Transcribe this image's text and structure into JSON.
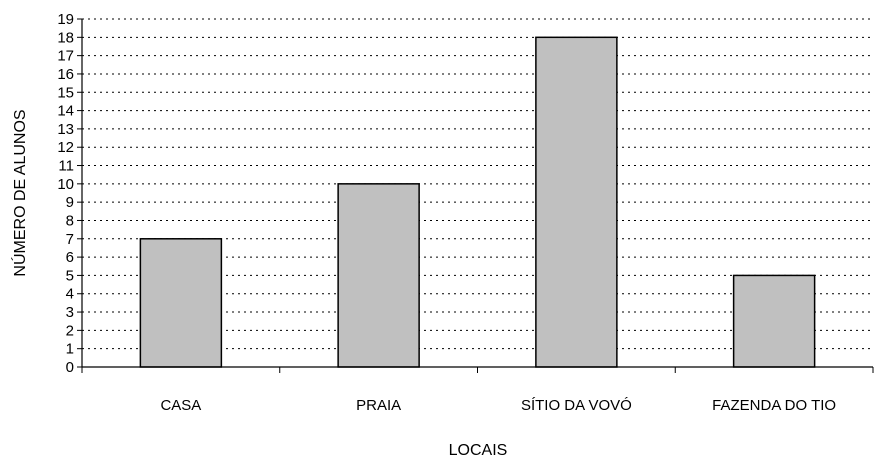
{
  "chart_data": {
    "type": "bar",
    "title": "",
    "xlabel": "LOCAIS",
    "ylabel": "NÚMERO DE ALUNOS",
    "categories": [
      "CASA",
      "PRAIA",
      "SÍTIO DA VOVÓ",
      "FAZENDA DO TIO"
    ],
    "values": [
      7,
      10,
      18,
      5
    ],
    "ylim": [
      0,
      19
    ],
    "yticks": [
      "0",
      "1",
      "2",
      "3",
      "4",
      "5",
      "6",
      "7",
      "8",
      "9",
      "10",
      "11",
      "12",
      "13",
      "14",
      "15",
      "16",
      "17",
      "18",
      "19"
    ],
    "grid": "dotted-horizontal",
    "bar_color": "#c0c0c0",
    "bar_border_color": "#000000"
  }
}
